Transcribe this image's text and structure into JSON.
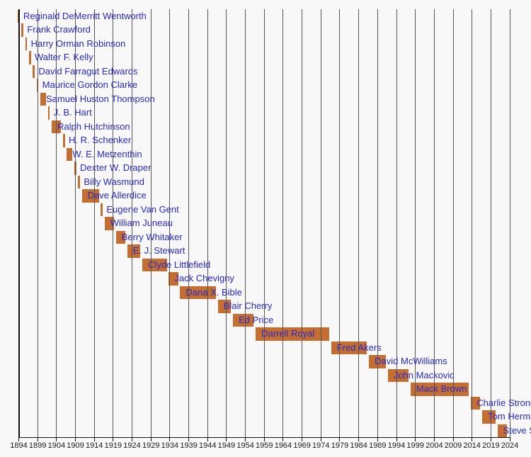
{
  "chart_data": {
    "type": "timeline",
    "subject": "Head football coaches tenure timeline",
    "legend_position": "none",
    "grid": "on",
    "x_axis": {
      "min": 1894,
      "tick_step": 5,
      "ticks": [
        1894,
        1899,
        1904,
        1909,
        1914,
        1919,
        1924,
        1929,
        1934,
        1939,
        1944,
        1949,
        1954,
        1959,
        1964,
        1969,
        1974,
        1979,
        1984,
        1989,
        1994,
        1999,
        2004,
        2009,
        2014,
        2019,
        2024
      ]
    },
    "series": [
      {
        "label": "Reginald DeMerritt Wentworth",
        "start": 1894,
        "end": 1894
      },
      {
        "label": "Frank Crawford",
        "start": 1895,
        "end": 1895
      },
      {
        "label": "Harry Orman Robinson",
        "start": 1896,
        "end": 1896
      },
      {
        "label": "Walter F. Kelly",
        "start": 1897,
        "end": 1897
      },
      {
        "label": "David Farragut Edwards",
        "start": 1898,
        "end": 1898
      },
      {
        "label": "Maurice Gordon Clarke",
        "start": 1899,
        "end": 1899
      },
      {
        "label": "Samuel Huston Thompson",
        "start": 1900,
        "end": 1901
      },
      {
        "label": "J. B. Hart",
        "start": 1902,
        "end": 1902
      },
      {
        "label": "Ralph Hutchinson",
        "start": 1903,
        "end": 1905
      },
      {
        "label": "H. R. Schenker",
        "start": 1906,
        "end": 1906
      },
      {
        "label": "W. E. Metzenthin",
        "start": 1907,
        "end": 1908
      },
      {
        "label": "Dexter W. Draper",
        "start": 1909,
        "end": 1909
      },
      {
        "label": "Billy Wasmund",
        "start": 1910,
        "end": 1910
      },
      {
        "label": "Dave Allerdice",
        "start": 1911,
        "end": 1915
      },
      {
        "label": "Eugene Van Gent",
        "start": 1916,
        "end": 1916
      },
      {
        "label": "William Juneau",
        "start": 1917,
        "end": 1919
      },
      {
        "label": "Berry Whitaker",
        "start": 1920,
        "end": 1922
      },
      {
        "label": "E. J. Stewart",
        "start": 1923,
        "end": 1926
      },
      {
        "label": "Clyde Littlefield",
        "start": 1927,
        "end": 1933
      },
      {
        "label": "Jack Chevigny",
        "start": 1934,
        "end": 1936
      },
      {
        "label": "Dana X. Bible",
        "start": 1937,
        "end": 1946
      },
      {
        "label": "Blair Cherry",
        "start": 1947,
        "end": 1950
      },
      {
        "label": "Ed Price",
        "start": 1951,
        "end": 1956
      },
      {
        "label": "Darrell Royal",
        "start": 1957,
        "end": 1976
      },
      {
        "label": "Fred Akers",
        "start": 1977,
        "end": 1986
      },
      {
        "label": "David McWilliams",
        "start": 1987,
        "end": 1991
      },
      {
        "label": "John Mackovic",
        "start": 1992,
        "end": 1997
      },
      {
        "label": "Mack Brown",
        "start": 1998,
        "end": 2013
      },
      {
        "label": "Charlie Strong",
        "start": 2014,
        "end": 2016
      },
      {
        "label": "Tom Herman",
        "start": 2017,
        "end": 2020
      },
      {
        "label": "Steve Sarkisian",
        "start": 2021,
        "end": 2023
      }
    ]
  },
  "colors": {
    "background": "#f8f8f8",
    "bar": "#c46f31",
    "coach_label": "#2828ca",
    "gridline": "#565656",
    "axis": "#121212",
    "tick_label": "#1a1a1a"
  }
}
